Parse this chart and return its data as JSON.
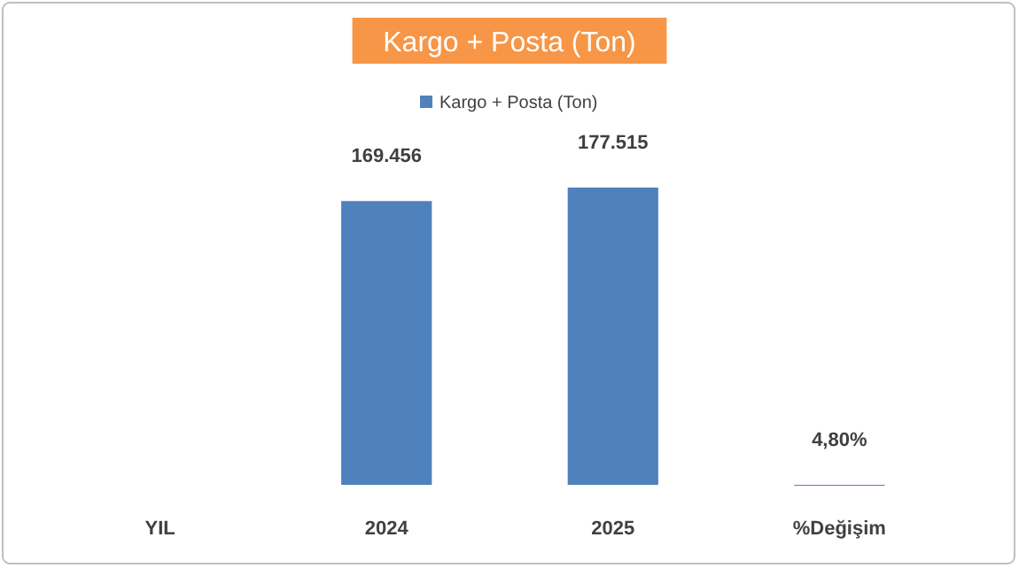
{
  "chart_data": {
    "type": "bar",
    "title": "Kargo + Posta (Ton)",
    "categories": [
      "YIL",
      "2024",
      "2025",
      "%Değişim"
    ],
    "series": [
      {
        "name": "Kargo + Posta (Ton)",
        "color": "#4f81bd",
        "values": [
          null,
          169456,
          177515,
          4.8
        ],
        "value_labels": [
          null,
          "169.456",
          "177.515",
          "4,80%"
        ]
      }
    ],
    "legend": "top",
    "grid": false
  }
}
